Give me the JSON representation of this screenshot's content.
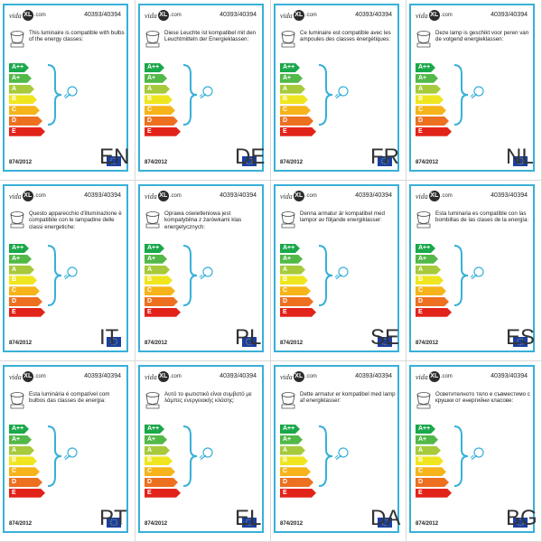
{
  "brand": {
    "prefix": "vida",
    "x": "XL",
    "suffix": ".com"
  },
  "model": "40393/40394",
  "regulation": "874/2012",
  "classes": [
    {
      "label": "A++",
      "color": "#1aa84a"
    },
    {
      "label": "A+",
      "color": "#52b848"
    },
    {
      "label": "A",
      "color": "#a6ca3b"
    },
    {
      "label": "B",
      "color": "#f0e620"
    },
    {
      "label": "C",
      "color": "#f6b41a"
    },
    {
      "label": "D",
      "color": "#ed7020"
    },
    {
      "label": "E",
      "color": "#e2231a"
    }
  ],
  "accent": "#38b0d8",
  "flag_color": "#1a3fa0",
  "icons": [
    "lamp-icon",
    "lightbulb-icon",
    "brace-icon",
    "eu-flag-icon"
  ],
  "cells": [
    {
      "code": "EN",
      "desc": "This luminaire is compatible with bulbs of the energy classes:"
    },
    {
      "code": "DE",
      "desc": "Diese Leuchte ist kompatibel mit den Leuchtmitteln der Energieklassen:"
    },
    {
      "code": "FR",
      "desc": "Ce luminaire est compatible avec les ampoules des classes énergétiques:"
    },
    {
      "code": "NL",
      "desc": "Deze lamp is geschikt voor peren van de volgend energieklassen:"
    },
    {
      "code": "IT",
      "desc": "Questo apparecchio d'illuminazione è compatibile con le lampadine delle classi energetiche:"
    },
    {
      "code": "PL",
      "desc": "Oprawa oświetleniowa jest kompatybilna z żarówkami klas energetycznych:"
    },
    {
      "code": "SE",
      "desc": "Denna armatur är kompatibel med lampor av följande energiklasser:"
    },
    {
      "code": "ES",
      "desc": "Esta luminaria es compatible con las bombillas de las clases de la energía:"
    },
    {
      "code": "PT",
      "desc": "Esta luminária é compatível com bulbos das classes de energia:"
    },
    {
      "code": "EL",
      "desc": "Αυτό το φωτιστικό είναι συμβατό με λάμπες ενεργειακής κλάσης:"
    },
    {
      "code": "DA",
      "desc": "Dette armatur er kompatibel med lamp af energiklasser:"
    },
    {
      "code": "BG",
      "desc": "Осветителното тяло е съвместимо с крушки от енергийни класове:"
    }
  ]
}
